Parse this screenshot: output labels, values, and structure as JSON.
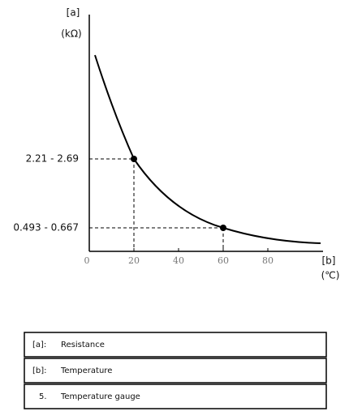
{
  "axis": {
    "y_label": "[a]",
    "y_unit": "(kΩ)",
    "x_label": "[b]",
    "x_unit": "(℃)",
    "x_ticks": [
      "0",
      "20",
      "40",
      "60",
      "80"
    ],
    "points": [
      {
        "label": "2.21 - 2.69"
      },
      {
        "label": "0.493 - 0.667"
      }
    ]
  },
  "table": {
    "rows": [
      [
        "[a]:",
        "Resistance"
      ],
      [
        "[b]:",
        "Temperature"
      ],
      [
        "5.",
        "Temperature gauge"
      ]
    ]
  }
}
